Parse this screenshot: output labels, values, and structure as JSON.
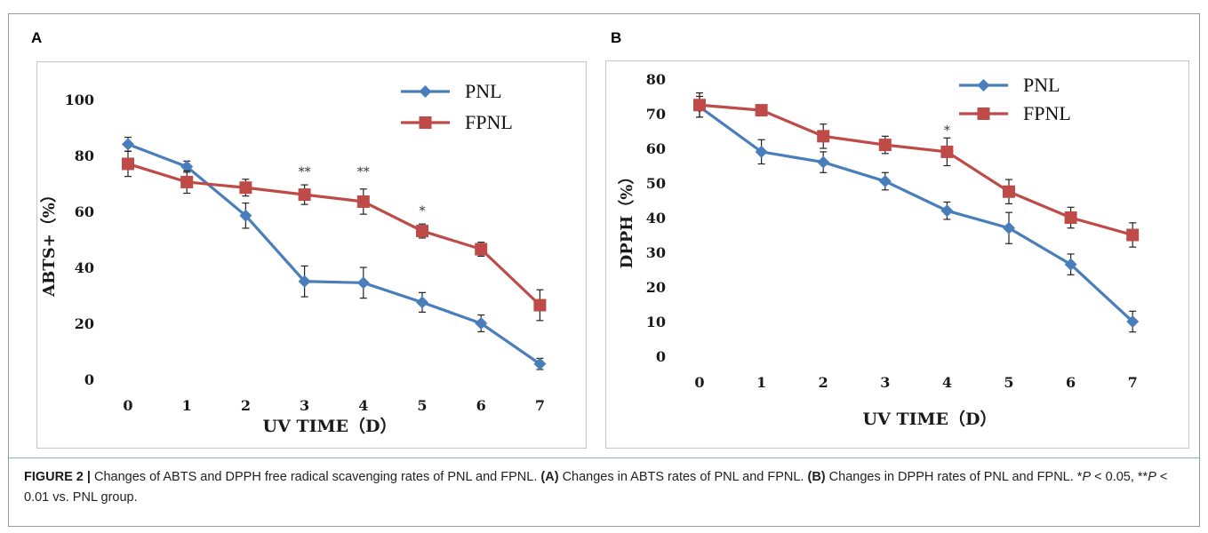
{
  "colors": {
    "pnl": "#4a7ebb",
    "fpnl": "#be4b48",
    "axis": "#8c8c8c",
    "text": "#1a1a1a"
  },
  "chart_data": [
    {
      "panel": "A",
      "type": "line",
      "xlabel": "UV TIME（D）",
      "ylabel": "ABTS+（%）",
      "x": [
        0,
        1,
        2,
        3,
        4,
        5,
        6,
        7
      ],
      "ylim": [
        0,
        100
      ],
      "yticks": [
        0,
        20,
        40,
        60,
        80,
        100
      ],
      "grid": false,
      "legend_position": "top-right",
      "series": [
        {
          "name": "PNL",
          "marker": "diamond",
          "values": [
            84,
            76,
            58.5,
            35,
            34.5,
            27.5,
            20,
            5.5
          ],
          "errors": [
            2.5,
            2,
            4.5,
            5.5,
            5.5,
            3.5,
            3,
            2
          ]
        },
        {
          "name": "FPNL",
          "marker": "square",
          "values": [
            77,
            70.5,
            68.5,
            66,
            63.5,
            53,
            46.5,
            26.5
          ],
          "errors": [
            4.5,
            4,
            3,
            3.5,
            4.5,
            2.5,
            2.5,
            5.5
          ]
        }
      ],
      "annotations": [
        {
          "x": 3,
          "text": "**",
          "y": 74
        },
        {
          "x": 4,
          "text": "**",
          "y": 74
        },
        {
          "x": 5,
          "text": "*",
          "y": 60
        }
      ]
    },
    {
      "panel": "B",
      "type": "line",
      "xlabel": "UV TIME（D）",
      "ylabel": "DPPH（%）",
      "x": [
        0,
        1,
        2,
        3,
        4,
        5,
        6,
        7
      ],
      "ylim": [
        0,
        80
      ],
      "yticks": [
        0,
        10,
        20,
        30,
        40,
        50,
        60,
        70,
        80
      ],
      "grid": false,
      "legend_position": "top-right",
      "series": [
        {
          "name": "PNL",
          "marker": "diamond",
          "values": [
            72,
            59,
            56,
            50.5,
            42,
            37,
            26.5,
            10
          ],
          "errors": [
            3,
            3.5,
            3,
            2.5,
            2.5,
            4.5,
            3,
            3
          ]
        },
        {
          "name": "FPNL",
          "marker": "square",
          "values": [
            72.5,
            71,
            63.5,
            61,
            59,
            47.5,
            40,
            35
          ],
          "errors": [
            3.5,
            1.5,
            3.5,
            2.5,
            4,
            3.5,
            3,
            3.5
          ]
        }
      ],
      "annotations": [
        {
          "x": 4,
          "text": "*",
          "y": 65
        }
      ]
    }
  ],
  "caption": {
    "figure_label": "FIGURE 2 |",
    "text1": " Changes of ABTS and DPPH free radical scavenging rates of PNL and FPNL. ",
    "a_label": "(A)",
    "text2": " Changes in ABTS rates of PNL and FPNL. ",
    "b_label": "(B)",
    "text3": " Changes in DPPH rates of PNL and FPNL. *",
    "p1": "P",
    "text4": " < 0.05, **",
    "p2": "P",
    "text5": " < 0.01 vs. PNL group."
  }
}
